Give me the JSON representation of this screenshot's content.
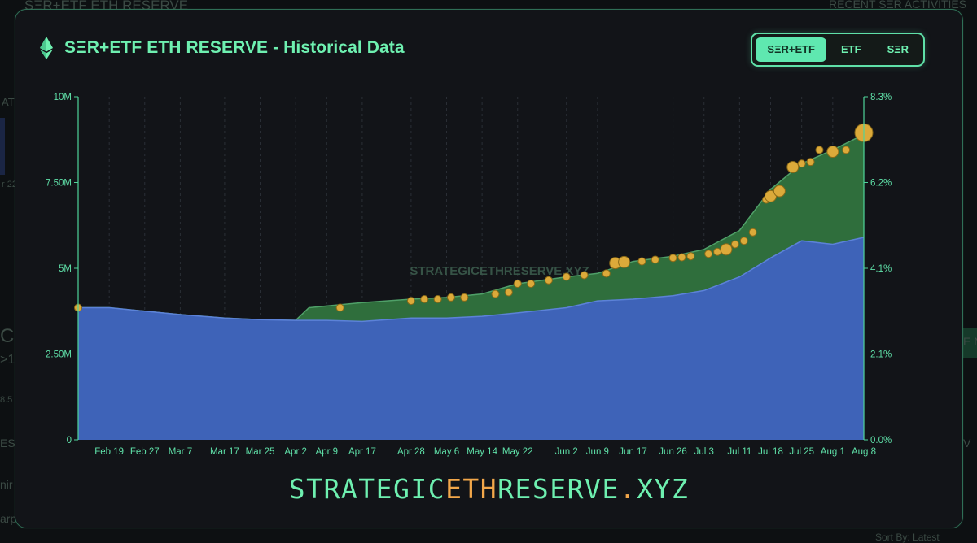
{
  "background": {
    "fragments": [
      {
        "key": "top_left",
        "text": "SΞR+ETF ETH RESERVE"
      },
      {
        "key": "top_right",
        "text": "RECENT SΞR ACTIVITIES"
      },
      {
        "key": "left_1",
        "text": "AT"
      },
      {
        "key": "left_2",
        "text": "r 22"
      },
      {
        "key": "left_3",
        "text": "C"
      },
      {
        "key": "left_4",
        "text": ">1"
      },
      {
        "key": "left_5",
        "text": "8.5"
      },
      {
        "key": "left_6",
        "text": "ES"
      },
      {
        "key": "left_7",
        "text": "nir"
      },
      {
        "key": "left_8",
        "text": "arp"
      },
      {
        "key": "right_1",
        "text": "E N"
      },
      {
        "key": "right_2",
        "text": "V"
      },
      {
        "key": "bottom_right",
        "text": "Sort By: Latest"
      }
    ]
  },
  "panel": {
    "title": "SΞR+ETF ETH RESERVE - Historical Data",
    "tabs": [
      {
        "label": "SΞR+ETF",
        "active": true
      },
      {
        "label": "ETF",
        "active": false
      },
      {
        "label": "SΞR",
        "active": false
      }
    ],
    "brand_parts": [
      "STRATEGIC",
      "ETH",
      "RESERVE",
      ".",
      "XYZ"
    ]
  },
  "colors": {
    "accent": "#6ef0b0",
    "etf_area": "#3e63b8",
    "ser_area": "#2f6e3c",
    "marker": "#dcaa3a",
    "brand_highlight": "#f2a74a"
  },
  "chart_data": {
    "type": "area",
    "watermark": "STRATEGICETHRESERVE.XYZ",
    "x_ticks": [
      "Feb 19",
      "Feb 27",
      "Mar 7",
      "Mar 17",
      "Mar 25",
      "Apr 2",
      "Apr 9",
      "Apr 17",
      "Apr 28",
      "May 6",
      "May 14",
      "May 22",
      "Jun 2",
      "Jun 9",
      "Jun 17",
      "Jun 26",
      "Jul 3",
      "Jul 11",
      "Jul 18",
      "Jul 25",
      "Aug 1",
      "Aug 8"
    ],
    "y_left_ticks": [
      "0",
      "2.50M",
      "5M",
      "7.50M",
      "10M"
    ],
    "y_right_ticks": [
      "0.0%",
      "2.1%",
      "4.1%",
      "6.2%",
      "8.3%"
    ],
    "ylim": [
      0,
      10000000
    ],
    "series": [
      {
        "name": "ETF",
        "dates": [
          "2025-02-12",
          "2025-02-19",
          "2025-02-27",
          "2025-03-07",
          "2025-03-17",
          "2025-03-25",
          "2025-04-02",
          "2025-04-09",
          "2025-04-17",
          "2025-04-28",
          "2025-05-06",
          "2025-05-14",
          "2025-05-22",
          "2025-06-02",
          "2025-06-09",
          "2025-06-17",
          "2025-06-26",
          "2025-07-03",
          "2025-07-11",
          "2025-07-18",
          "2025-07-25",
          "2025-08-01",
          "2025-08-08"
        ],
        "values": [
          3850000,
          3850000,
          3750000,
          3650000,
          3550000,
          3500000,
          3480000,
          3480000,
          3450000,
          3550000,
          3550000,
          3600000,
          3700000,
          3850000,
          4050000,
          4100000,
          4200000,
          4350000,
          4750000,
          5300000,
          5800000,
          5700000,
          5900000
        ]
      },
      {
        "name": "SΞR+ETF",
        "dates": [
          "2025-02-12",
          "2025-02-19",
          "2025-02-27",
          "2025-03-07",
          "2025-03-17",
          "2025-03-25",
          "2025-04-02",
          "2025-04-05",
          "2025-04-09",
          "2025-04-17",
          "2025-04-28",
          "2025-05-06",
          "2025-05-14",
          "2025-05-22",
          "2025-06-02",
          "2025-06-09",
          "2025-06-17",
          "2025-06-26",
          "2025-07-03",
          "2025-07-11",
          "2025-07-18",
          "2025-07-25",
          "2025-08-01",
          "2025-08-08"
        ],
        "values": [
          3850000,
          3850000,
          3750000,
          3650000,
          3550000,
          3500000,
          3480000,
          3850000,
          3900000,
          4000000,
          4100000,
          4150000,
          4250000,
          4550000,
          4750000,
          4850000,
          5200000,
          5350000,
          5550000,
          6100000,
          7300000,
          8050000,
          8450000,
          8900000
        ]
      }
    ],
    "markers": [
      {
        "date": "2025-02-12",
        "value": 3850000,
        "size": "s"
      },
      {
        "date": "2025-04-12",
        "value": 3850000,
        "size": "s"
      },
      {
        "date": "2025-04-28",
        "value": 4050000,
        "size": "s"
      },
      {
        "date": "2025-05-01",
        "value": 4100000,
        "size": "s"
      },
      {
        "date": "2025-05-04",
        "value": 4100000,
        "size": "s"
      },
      {
        "date": "2025-05-07",
        "value": 4150000,
        "size": "s"
      },
      {
        "date": "2025-05-10",
        "value": 4150000,
        "size": "s"
      },
      {
        "date": "2025-05-17",
        "value": 4250000,
        "size": "s"
      },
      {
        "date": "2025-05-20",
        "value": 4300000,
        "size": "s"
      },
      {
        "date": "2025-05-22",
        "value": 4550000,
        "size": "s"
      },
      {
        "date": "2025-05-25",
        "value": 4550000,
        "size": "s"
      },
      {
        "date": "2025-05-29",
        "value": 4650000,
        "size": "s"
      },
      {
        "date": "2025-06-02",
        "value": 4750000,
        "size": "s"
      },
      {
        "date": "2025-06-06",
        "value": 4800000,
        "size": "s"
      },
      {
        "date": "2025-06-11",
        "value": 4850000,
        "size": "s"
      },
      {
        "date": "2025-06-13",
        "value": 5150000,
        "size": "m"
      },
      {
        "date": "2025-06-15",
        "value": 5180000,
        "size": "m"
      },
      {
        "date": "2025-06-19",
        "value": 5200000,
        "size": "s"
      },
      {
        "date": "2025-06-22",
        "value": 5250000,
        "size": "s"
      },
      {
        "date": "2025-06-26",
        "value": 5300000,
        "size": "s"
      },
      {
        "date": "2025-06-28",
        "value": 5320000,
        "size": "s"
      },
      {
        "date": "2025-06-30",
        "value": 5350000,
        "size": "s"
      },
      {
        "date": "2025-07-04",
        "value": 5420000,
        "size": "s"
      },
      {
        "date": "2025-07-06",
        "value": 5480000,
        "size": "s"
      },
      {
        "date": "2025-07-08",
        "value": 5550000,
        "size": "m"
      },
      {
        "date": "2025-07-10",
        "value": 5700000,
        "size": "s"
      },
      {
        "date": "2025-07-12",
        "value": 5800000,
        "size": "s"
      },
      {
        "date": "2025-07-14",
        "value": 6050000,
        "size": "s"
      },
      {
        "date": "2025-07-17",
        "value": 7000000,
        "size": "s"
      },
      {
        "date": "2025-07-18",
        "value": 7100000,
        "size": "m"
      },
      {
        "date": "2025-07-20",
        "value": 7250000,
        "size": "m"
      },
      {
        "date": "2025-07-23",
        "value": 7950000,
        "size": "m"
      },
      {
        "date": "2025-07-25",
        "value": 8050000,
        "size": "s"
      },
      {
        "date": "2025-07-27",
        "value": 8100000,
        "size": "s"
      },
      {
        "date": "2025-07-29",
        "value": 8450000,
        "size": "s"
      },
      {
        "date": "2025-08-01",
        "value": 8400000,
        "size": "m"
      },
      {
        "date": "2025-08-04",
        "value": 8450000,
        "size": "s"
      },
      {
        "date": "2025-08-08",
        "value": 8950000,
        "size": "l"
      }
    ]
  }
}
